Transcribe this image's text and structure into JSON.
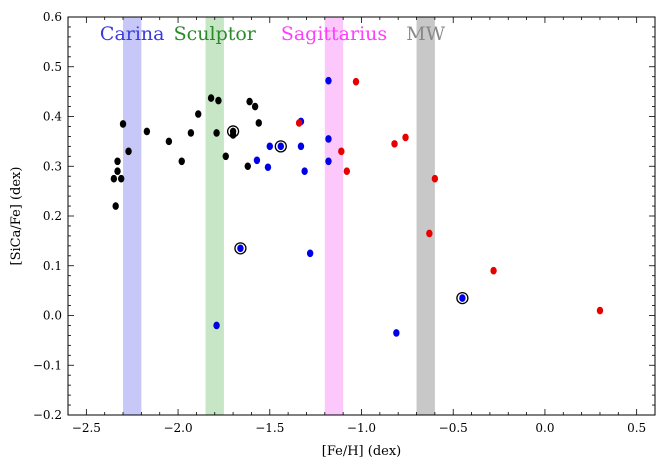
{
  "chart_data": {
    "type": "scatter",
    "xlabel": "[Fe/H] (dex)",
    "ylabel": "[SiCa/Fe] (dex)",
    "xlim": [
      -2.6,
      0.6
    ],
    "ylim": [
      -0.2,
      0.6
    ],
    "xticks": [
      -2.5,
      -2.0,
      -1.5,
      -1.0,
      -0.5,
      0.0,
      0.5
    ],
    "xtick_labels": [
      "−2.5",
      "−2.0",
      "−1.5",
      "−1.0",
      "−0.5",
      "0.0",
      "0.5"
    ],
    "yticks": [
      -0.2,
      -0.1,
      0.0,
      0.1,
      0.2,
      0.3,
      0.4,
      0.5,
      0.6
    ],
    "ytick_labels": [
      "−0.2",
      "−0.1",
      "0.0",
      "0.1",
      "0.2",
      "0.3",
      "0.4",
      "0.5",
      "0.6"
    ],
    "grid": false,
    "bands": [
      {
        "label": "Carina",
        "x_range": [
          -2.3,
          -2.2
        ],
        "fill_color": "#c8c8f8",
        "text_color": "#3a3ae0"
      },
      {
        "label": "Sculptor",
        "x_range": [
          -1.85,
          -1.75
        ],
        "fill_color": "#c6e6c6",
        "text_color": "#2a8a2a"
      },
      {
        "label": "Sagittarius",
        "x_range": [
          -1.2,
          -1.1
        ],
        "fill_color": "#fcc8fc",
        "text_color": "#ff3cff"
      },
      {
        "label": "MW",
        "x_range": [
          -0.7,
          -0.6
        ],
        "fill_color": "#c8c8c8",
        "text_color": "#888888"
      }
    ],
    "series": [
      {
        "color": "#000000",
        "points": [
          {
            "x": -2.35,
            "y": 0.275
          },
          {
            "x": -2.34,
            "y": 0.22
          },
          {
            "x": -2.33,
            "y": 0.29
          },
          {
            "x": -2.33,
            "y": 0.31
          },
          {
            "x": -2.31,
            "y": 0.275
          },
          {
            "x": -2.3,
            "y": 0.385
          },
          {
            "x": -2.27,
            "y": 0.33
          },
          {
            "x": -2.17,
            "y": 0.37
          },
          {
            "x": -2.05,
            "y": 0.35
          },
          {
            "x": -1.98,
            "y": 0.31
          },
          {
            "x": -1.93,
            "y": 0.367
          },
          {
            "x": -1.89,
            "y": 0.405
          },
          {
            "x": -1.82,
            "y": 0.437
          },
          {
            "x": -1.79,
            "y": 0.367
          },
          {
            "x": -1.78,
            "y": 0.432
          },
          {
            "x": -1.74,
            "y": 0.32
          },
          {
            "x": -1.7,
            "y": 0.37,
            "highlight": true
          },
          {
            "x": -1.7,
            "y": 0.363
          },
          {
            "x": -1.62,
            "y": 0.3
          },
          {
            "x": -1.61,
            "y": 0.43
          },
          {
            "x": -1.58,
            "y": 0.42
          },
          {
            "x": -1.56,
            "y": 0.387
          }
        ]
      },
      {
        "color": "#0000e6",
        "points": [
          {
            "x": -1.79,
            "y": -0.02
          },
          {
            "x": -1.66,
            "y": 0.135,
            "highlight": true
          },
          {
            "x": -1.57,
            "y": 0.312
          },
          {
            "x": -1.51,
            "y": 0.298
          },
          {
            "x": -1.5,
            "y": 0.34
          },
          {
            "x": -1.44,
            "y": 0.34,
            "highlight": true
          },
          {
            "x": -1.33,
            "y": 0.34
          },
          {
            "x": -1.33,
            "y": 0.39
          },
          {
            "x": -1.31,
            "y": 0.29
          },
          {
            "x": -1.28,
            "y": 0.125
          },
          {
            "x": -1.18,
            "y": 0.355
          },
          {
            "x": -1.18,
            "y": 0.31
          },
          {
            "x": -1.18,
            "y": 0.472
          },
          {
            "x": -0.81,
            "y": -0.035
          },
          {
            "x": -0.45,
            "y": 0.035,
            "highlight": true
          }
        ]
      },
      {
        "color": "#e60000",
        "points": [
          {
            "x": -1.34,
            "y": 0.387
          },
          {
            "x": -1.11,
            "y": 0.33
          },
          {
            "x": -1.08,
            "y": 0.29
          },
          {
            "x": -1.03,
            "y": 0.47
          },
          {
            "x": -0.82,
            "y": 0.345
          },
          {
            "x": -0.76,
            "y": 0.358
          },
          {
            "x": -0.63,
            "y": 0.165
          },
          {
            "x": -0.6,
            "y": 0.275
          },
          {
            "x": -0.28,
            "y": 0.09
          },
          {
            "x": 0.3,
            "y": 0.01
          }
        ]
      }
    ]
  }
}
